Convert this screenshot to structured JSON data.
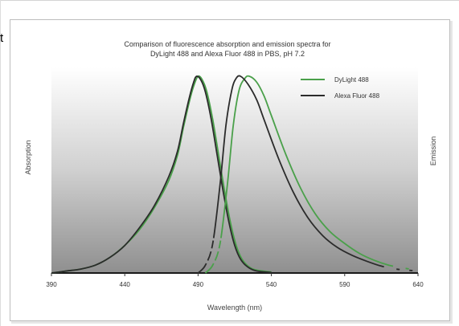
{
  "page": {
    "stray_text": "t"
  },
  "chart_data": {
    "type": "line",
    "title_lines": [
      "Comparison of fluorescence absorption and emission spectra for",
      "DyLight 488 and Alexa Fluor 488 in PBS, pH 7.2"
    ],
    "xlabel": "Wavelength (nm)",
    "ylabel_left": "Absorption",
    "ylabel_right": "Emission",
    "xlim": [
      390,
      640
    ],
    "ylim": [
      0,
      1
    ],
    "x_ticks": [
      390,
      440,
      490,
      540,
      590,
      640
    ],
    "tick_labels": [
      "390",
      "440",
      "490",
      "540",
      "590",
      "640"
    ],
    "grid": false,
    "legend_position": "top-right",
    "colors": {
      "dylight": "#4aa04a",
      "alexa": "#2b2b2b",
      "background_top": "#ffffff",
      "background_bottom": "#8f8f8f"
    },
    "legend": [
      {
        "label": "DyLight 488",
        "color": "#4aa04a"
      },
      {
        "label": "Alexa Fluor 488",
        "color": "#2b2b2b"
      }
    ],
    "series": [
      {
        "name": "DyLight 488",
        "kind": "absorption",
        "color": "#4aa04a",
        "dash": "solid",
        "points": [
          [
            390,
            0.0
          ],
          [
            400,
            0.01
          ],
          [
            410,
            0.02
          ],
          [
            420,
            0.04
          ],
          [
            430,
            0.08
          ],
          [
            440,
            0.14
          ],
          [
            450,
            0.22
          ],
          [
            460,
            0.33
          ],
          [
            470,
            0.47
          ],
          [
            476,
            0.6
          ],
          [
            480,
            0.74
          ],
          [
            484,
            0.87
          ],
          [
            487,
            0.95
          ],
          [
            490,
            1.0
          ],
          [
            493,
            0.98
          ],
          [
            496,
            0.92
          ],
          [
            500,
            0.78
          ],
          [
            504,
            0.6
          ],
          [
            508,
            0.42
          ],
          [
            512,
            0.26
          ],
          [
            516,
            0.14
          ],
          [
            520,
            0.07
          ],
          [
            525,
            0.03
          ],
          [
            530,
            0.015
          ],
          [
            540,
            0.005
          ]
        ]
      },
      {
        "name": "Alexa Fluor 488",
        "kind": "absorption",
        "color": "#2b2b2b",
        "dash": "solid",
        "points": [
          [
            390,
            0.0
          ],
          [
            400,
            0.01
          ],
          [
            410,
            0.02
          ],
          [
            420,
            0.04
          ],
          [
            430,
            0.08
          ],
          [
            440,
            0.14
          ],
          [
            450,
            0.23
          ],
          [
            460,
            0.34
          ],
          [
            470,
            0.49
          ],
          [
            476,
            0.62
          ],
          [
            480,
            0.76
          ],
          [
            484,
            0.89
          ],
          [
            487,
            0.97
          ],
          [
            489,
            1.0
          ],
          [
            492,
            0.98
          ],
          [
            495,
            0.92
          ],
          [
            499,
            0.78
          ],
          [
            503,
            0.6
          ],
          [
            507,
            0.42
          ],
          [
            511,
            0.26
          ],
          [
            515,
            0.14
          ],
          [
            519,
            0.07
          ],
          [
            524,
            0.03
          ],
          [
            530,
            0.01
          ],
          [
            540,
            0.003
          ]
        ]
      },
      {
        "name": "DyLight 488",
        "kind": "emission",
        "color": "#4aa04a",
        "dash": "dashed-solid",
        "points": [
          [
            495,
            0.0
          ],
          [
            500,
            0.04
          ],
          [
            505,
            0.15
          ],
          [
            510,
            0.45
          ],
          [
            514,
            0.75
          ],
          [
            518,
            0.93
          ],
          [
            522,
            0.99
          ],
          [
            525,
            1.0
          ],
          [
            530,
            0.97
          ],
          [
            535,
            0.9
          ],
          [
            540,
            0.8
          ],
          [
            550,
            0.6
          ],
          [
            560,
            0.43
          ],
          [
            570,
            0.3
          ],
          [
            580,
            0.21
          ],
          [
            590,
            0.15
          ],
          [
            600,
            0.1
          ],
          [
            610,
            0.065
          ],
          [
            620,
            0.04
          ],
          [
            630,
            0.025
          ],
          [
            640,
            0.015
          ]
        ]
      },
      {
        "name": "Alexa Fluor 488",
        "kind": "emission",
        "color": "#2b2b2b",
        "dash": "dashed-solid",
        "points": [
          [
            490,
            0.0
          ],
          [
            495,
            0.04
          ],
          [
            500,
            0.15
          ],
          [
            505,
            0.45
          ],
          [
            509,
            0.75
          ],
          [
            513,
            0.93
          ],
          [
            516,
            0.99
          ],
          [
            519,
            1.0
          ],
          [
            524,
            0.96
          ],
          [
            530,
            0.88
          ],
          [
            535,
            0.78
          ],
          [
            545,
            0.58
          ],
          [
            555,
            0.41
          ],
          [
            565,
            0.28
          ],
          [
            575,
            0.19
          ],
          [
            585,
            0.13
          ],
          [
            595,
            0.09
          ],
          [
            605,
            0.06
          ],
          [
            615,
            0.035
          ],
          [
            625,
            0.02
          ],
          [
            640,
            0.01
          ]
        ]
      }
    ]
  }
}
